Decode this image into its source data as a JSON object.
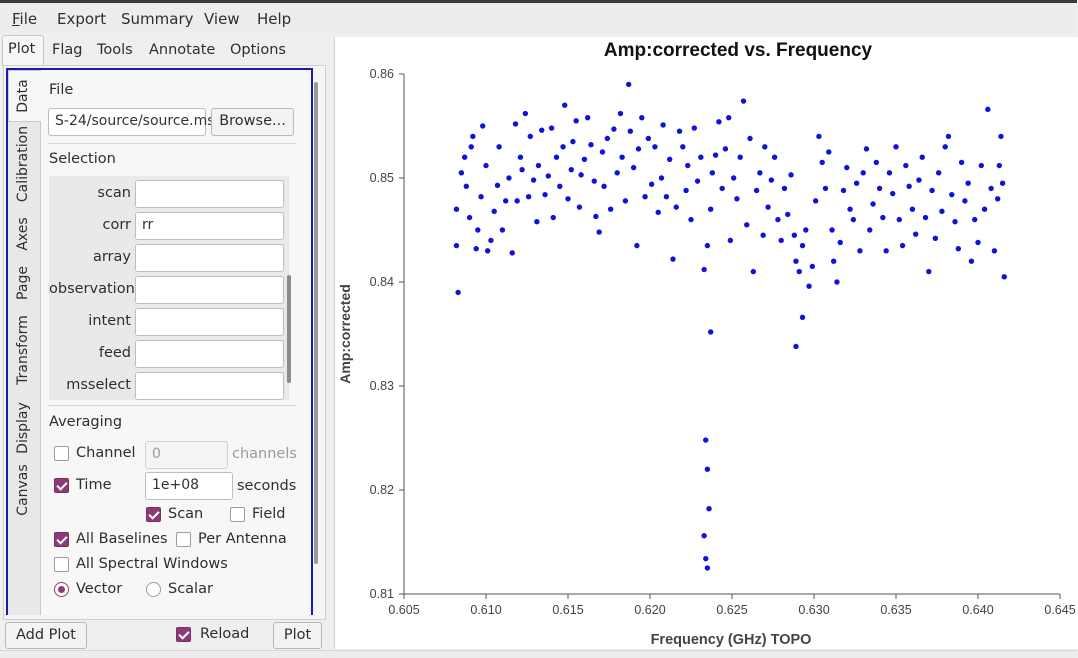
{
  "menu": [
    {
      "label": "File",
      "underline": true
    },
    {
      "label": "Export",
      "underline": false
    },
    {
      "label": "Summary",
      "underline": false
    },
    {
      "label": "View",
      "underline": false
    },
    {
      "label": "Help",
      "underline": false
    }
  ],
  "tabs": [
    "Plot",
    "Flag",
    "Tools",
    "Annotate",
    "Options"
  ],
  "side_tabs": [
    "Data",
    "Calibration",
    "Axes",
    "Page",
    "Transform",
    "Display",
    "Canvas"
  ],
  "file": {
    "heading": "File",
    "path": "S-24/source/source.ms",
    "browse": "Browse..."
  },
  "selection": {
    "heading": "Selection",
    "fields": [
      {
        "label": "scan",
        "value": ""
      },
      {
        "label": "corr",
        "value": "rr"
      },
      {
        "label": "array",
        "value": ""
      },
      {
        "label": "observation",
        "value": ""
      },
      {
        "label": "intent",
        "value": ""
      },
      {
        "label": "feed",
        "value": ""
      },
      {
        "label": "msselect",
        "value": ""
      }
    ]
  },
  "averaging": {
    "heading": "Averaging",
    "channel_label": "Channel",
    "channel_value": "0",
    "channel_units": "channels",
    "time_label": "Time",
    "time_value": "1e+08",
    "time_units": "seconds",
    "scan_label": "Scan",
    "field_label": "Field",
    "all_baselines": "All Baselines",
    "per_antenna": "Per Antenna",
    "all_spw": "All Spectral Windows",
    "vector": "Vector",
    "scalar": "Scalar"
  },
  "bottom": {
    "add_plot": "Add Plot",
    "reload": "Reload",
    "plot": "Plot"
  },
  "colors": {
    "point": "#1010e0",
    "checkbox": "#8c3b76",
    "tab_border": "#1a1ab0"
  },
  "chart_data": {
    "type": "scatter",
    "title": "Amp:corrected vs. Frequency",
    "xlabel": "Frequency (GHz) TOPO",
    "ylabel": "Amp:corrected",
    "xlim": [
      0.605,
      0.645
    ],
    "ylim": [
      0.81,
      0.86
    ],
    "xticks": [
      "0.605",
      "0.610",
      "0.615",
      "0.620",
      "0.625",
      "0.630",
      "0.635",
      "0.640",
      "0.645"
    ],
    "yticks": [
      "0.81",
      "0.82",
      "0.83",
      "0.84",
      "0.85",
      "0.86"
    ],
    "series": [
      {
        "points": [
          [
            0.6082,
            0.847
          ],
          [
            0.6082,
            0.8435
          ],
          [
            0.6083,
            0.839
          ],
          [
            0.6085,
            0.8505
          ],
          [
            0.6087,
            0.852
          ],
          [
            0.6088,
            0.8492
          ],
          [
            0.609,
            0.8462
          ],
          [
            0.6091,
            0.853
          ],
          [
            0.6092,
            0.854
          ],
          [
            0.6094,
            0.8432
          ],
          [
            0.6095,
            0.845
          ],
          [
            0.6097,
            0.8482
          ],
          [
            0.6098,
            0.855
          ],
          [
            0.61,
            0.8512
          ],
          [
            0.6101,
            0.843
          ],
          [
            0.6103,
            0.844
          ],
          [
            0.6105,
            0.8468
          ],
          [
            0.6107,
            0.8493
          ],
          [
            0.6108,
            0.853
          ],
          [
            0.611,
            0.845
          ],
          [
            0.6112,
            0.8478
          ],
          [
            0.6114,
            0.85
          ],
          [
            0.6116,
            0.8428
          ],
          [
            0.6118,
            0.8552
          ],
          [
            0.6119,
            0.8478
          ],
          [
            0.6121,
            0.852
          ],
          [
            0.6122,
            0.8508
          ],
          [
            0.6124,
            0.8562
          ],
          [
            0.6126,
            0.8482
          ],
          [
            0.6127,
            0.854
          ],
          [
            0.6129,
            0.8498
          ],
          [
            0.6131,
            0.8458
          ],
          [
            0.6132,
            0.8512
          ],
          [
            0.6134,
            0.8546
          ],
          [
            0.6136,
            0.8484
          ],
          [
            0.6138,
            0.8502
          ],
          [
            0.614,
            0.8548
          ],
          [
            0.6141,
            0.8462
          ],
          [
            0.6143,
            0.852
          ],
          [
            0.6145,
            0.8492
          ],
          [
            0.6147,
            0.853
          ],
          [
            0.6148,
            0.857
          ],
          [
            0.615,
            0.848
          ],
          [
            0.6152,
            0.8508
          ],
          [
            0.6153,
            0.8535
          ],
          [
            0.6155,
            0.8555
          ],
          [
            0.6157,
            0.8472
          ],
          [
            0.6158,
            0.8503
          ],
          [
            0.616,
            0.8518
          ],
          [
            0.6162,
            0.8558
          ],
          [
            0.6164,
            0.8532
          ],
          [
            0.6166,
            0.8497
          ],
          [
            0.6167,
            0.8463
          ],
          [
            0.6169,
            0.8448
          ],
          [
            0.6171,
            0.8525
          ],
          [
            0.6172,
            0.8492
          ],
          [
            0.6174,
            0.8538
          ],
          [
            0.6176,
            0.847
          ],
          [
            0.6178,
            0.8547
          ],
          [
            0.618,
            0.8505
          ],
          [
            0.6182,
            0.8562
          ],
          [
            0.6183,
            0.852
          ],
          [
            0.6185,
            0.8478
          ],
          [
            0.6187,
            0.859
          ],
          [
            0.6188,
            0.8545
          ],
          [
            0.619,
            0.851
          ],
          [
            0.6192,
            0.8435
          ],
          [
            0.6193,
            0.8528
          ],
          [
            0.6195,
            0.8558
          ],
          [
            0.6197,
            0.8482
          ],
          [
            0.6199,
            0.8538
          ],
          [
            0.6201,
            0.8494
          ],
          [
            0.6203,
            0.853
          ],
          [
            0.6205,
            0.8467
          ],
          [
            0.6207,
            0.85
          ],
          [
            0.6208,
            0.8551
          ],
          [
            0.621,
            0.8482
          ],
          [
            0.6212,
            0.8518
          ],
          [
            0.6214,
            0.8422
          ],
          [
            0.6216,
            0.8472
          ],
          [
            0.6218,
            0.8545
          ],
          [
            0.622,
            0.853
          ],
          [
            0.6222,
            0.8488
          ],
          [
            0.6223,
            0.8512
          ],
          [
            0.6225,
            0.846
          ],
          [
            0.6227,
            0.8548
          ],
          [
            0.6229,
            0.8497
          ],
          [
            0.6231,
            0.852
          ],
          [
            0.6233,
            0.8412
          ],
          [
            0.6235,
            0.8435
          ],
          [
            0.6237,
            0.847
          ],
          [
            0.6238,
            0.8505
          ],
          [
            0.624,
            0.8522
          ],
          [
            0.6242,
            0.8554
          ],
          [
            0.6244,
            0.849
          ],
          [
            0.6246,
            0.8528
          ],
          [
            0.6248,
            0.8558
          ],
          [
            0.6249,
            0.844
          ],
          [
            0.6251,
            0.85
          ],
          [
            0.6253,
            0.848
          ],
          [
            0.6255,
            0.852
          ],
          [
            0.6257,
            0.8574
          ],
          [
            0.6259,
            0.8455
          ],
          [
            0.6261,
            0.8538
          ],
          [
            0.6263,
            0.841
          ],
          [
            0.6265,
            0.8488
          ],
          [
            0.6267,
            0.8505
          ],
          [
            0.6269,
            0.8445
          ],
          [
            0.627,
            0.853
          ],
          [
            0.6272,
            0.8472
          ],
          [
            0.6274,
            0.8498
          ],
          [
            0.6276,
            0.852
          ],
          [
            0.6278,
            0.846
          ],
          [
            0.628,
            0.844
          ],
          [
            0.6282,
            0.849
          ],
          [
            0.6284,
            0.8465
          ],
          [
            0.6286,
            0.8503
          ],
          [
            0.6288,
            0.8445
          ],
          [
            0.6289,
            0.842
          ],
          [
            0.6291,
            0.841
          ],
          [
            0.6293,
            0.8435
          ],
          [
            0.6295,
            0.845
          ],
          [
            0.6297,
            0.8396
          ],
          [
            0.6299,
            0.8415
          ],
          [
            0.6301,
            0.8478
          ],
          [
            0.6303,
            0.854
          ],
          [
            0.6305,
            0.8515
          ],
          [
            0.6307,
            0.849
          ],
          [
            0.6309,
            0.8525
          ],
          [
            0.6311,
            0.845
          ],
          [
            0.6312,
            0.842
          ],
          [
            0.6314,
            0.84
          ],
          [
            0.6316,
            0.8438
          ],
          [
            0.6318,
            0.8488
          ],
          [
            0.632,
            0.851
          ],
          [
            0.6322,
            0.847
          ],
          [
            0.6324,
            0.846
          ],
          [
            0.6326,
            0.8495
          ],
          [
            0.6328,
            0.843
          ],
          [
            0.633,
            0.8505
          ],
          [
            0.6332,
            0.8528
          ],
          [
            0.6334,
            0.845
          ],
          [
            0.6336,
            0.8475
          ],
          [
            0.6338,
            0.8515
          ],
          [
            0.634,
            0.849
          ],
          [
            0.6342,
            0.8462
          ],
          [
            0.6344,
            0.843
          ],
          [
            0.6346,
            0.8505
          ],
          [
            0.6348,
            0.8485
          ],
          [
            0.635,
            0.853
          ],
          [
            0.6352,
            0.846
          ],
          [
            0.6354,
            0.8435
          ],
          [
            0.6356,
            0.8512
          ],
          [
            0.6358,
            0.8492
          ],
          [
            0.636,
            0.847
          ],
          [
            0.6362,
            0.8446
          ],
          [
            0.6364,
            0.8498
          ],
          [
            0.6366,
            0.852
          ],
          [
            0.6368,
            0.8462
          ],
          [
            0.637,
            0.841
          ],
          [
            0.6372,
            0.8488
          ],
          [
            0.6374,
            0.8442
          ],
          [
            0.6376,
            0.8505
          ],
          [
            0.6378,
            0.8468
          ],
          [
            0.638,
            0.853
          ],
          [
            0.6382,
            0.854
          ],
          [
            0.6384,
            0.8484
          ],
          [
            0.6386,
            0.8458
          ],
          [
            0.6388,
            0.8432
          ],
          [
            0.639,
            0.8515
          ],
          [
            0.6392,
            0.8478
          ],
          [
            0.6394,
            0.8495
          ],
          [
            0.6396,
            0.842
          ],
          [
            0.6398,
            0.846
          ],
          [
            0.64,
            0.8438
          ],
          [
            0.6402,
            0.8512
          ],
          [
            0.6404,
            0.847
          ],
          [
            0.6406,
            0.8566
          ],
          [
            0.6408,
            0.849
          ],
          [
            0.641,
            0.843
          ],
          [
            0.6412,
            0.848
          ],
          [
            0.6413,
            0.8512
          ],
          [
            0.6414,
            0.854
          ],
          [
            0.6415,
            0.8495
          ],
          [
            0.6416,
            0.8405
          ],
          [
            0.6234,
            0.8248
          ],
          [
            0.6235,
            0.822
          ],
          [
            0.6236,
            0.8182
          ],
          [
            0.6233,
            0.8156
          ],
          [
            0.6234,
            0.8134
          ],
          [
            0.6235,
            0.8125
          ],
          [
            0.6237,
            0.8352
          ],
          [
            0.6289,
            0.8338
          ],
          [
            0.6293,
            0.8366
          ]
        ]
      }
    ]
  }
}
